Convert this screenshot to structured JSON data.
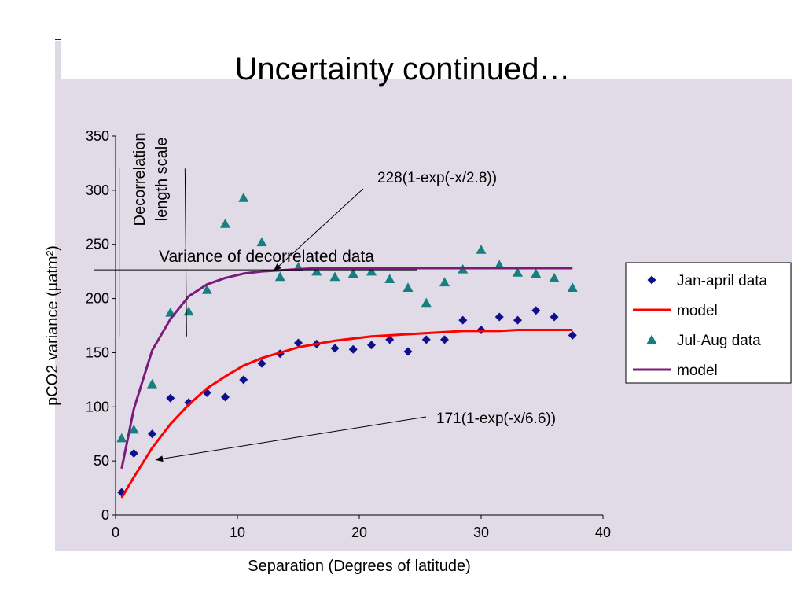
{
  "slide": {
    "title": "Uncertainty continued…"
  },
  "chart_data": {
    "type": "scatter",
    "xlabel": "Separation (Degrees of latitude)",
    "ylabel": "pCO2 variance (µatm²)",
    "xlim": [
      0,
      40
    ],
    "ylim": [
      0,
      350
    ],
    "x_ticks": [
      0,
      10,
      20,
      30,
      40
    ],
    "y_ticks": [
      0,
      50,
      100,
      150,
      200,
      250,
      300,
      350
    ],
    "grid": false,
    "legend_position": "right",
    "series": [
      {
        "name": "Jan-april data",
        "kind": "scatter",
        "marker": "diamond",
        "color": "#0f0f8c",
        "x": [
          0.5,
          1.5,
          3,
          4.5,
          6,
          7.5,
          9,
          10.5,
          12,
          13.5,
          15,
          16.5,
          18,
          19.5,
          21,
          22.5,
          24,
          25.5,
          27,
          28.5,
          30,
          31.5,
          33,
          34.5,
          36,
          37.5
        ],
        "y": [
          21,
          57,
          75,
          108,
          104,
          113,
          109,
          125,
          140,
          149,
          159,
          158,
          154,
          153,
          157,
          162,
          151,
          162,
          162,
          180,
          171,
          183,
          180,
          189,
          183,
          166
        ]
      },
      {
        "name": "model",
        "kind": "line",
        "color": "#ff0000",
        "amplitude": 171,
        "scale": 6.6,
        "x": [
          0.5,
          1.5,
          3,
          4.5,
          6,
          7.5,
          9,
          10.5,
          12,
          13.5,
          15,
          16.5,
          18,
          19.5,
          21,
          22.5,
          24,
          25.5,
          27,
          28.5,
          30,
          31.5,
          33,
          34.5,
          36,
          37.5
        ],
        "y": [
          16,
          35,
          62,
          84,
          102,
          117,
          128,
          138,
          145,
          150,
          155,
          158,
          161,
          163,
          165,
          166,
          167,
          168,
          169,
          170,
          170,
          170,
          171,
          171,
          171,
          171
        ]
      },
      {
        "name": "Jul-Aug data",
        "kind": "scatter",
        "marker": "triangle",
        "color": "#168080",
        "x": [
          0.5,
          1.5,
          3,
          4.5,
          6,
          7.5,
          9,
          10.5,
          12,
          13.5,
          15,
          16.5,
          18,
          19.5,
          21,
          22.5,
          24,
          25.5,
          27,
          28.5,
          30,
          31.5,
          33,
          34.5,
          36,
          37.5
        ],
        "y": [
          71,
          79,
          121,
          187,
          188,
          208,
          269,
          293,
          252,
          220,
          229,
          225,
          220,
          223,
          225,
          218,
          210,
          196,
          215,
          227,
          245,
          231,
          224,
          223,
          219,
          210
        ]
      },
      {
        "name": "model",
        "kind": "line",
        "color": "#7b1b7c",
        "amplitude": 228,
        "scale": 2.8,
        "x": [
          0.5,
          1.5,
          3,
          4.5,
          6,
          7.5,
          9,
          10.5,
          12,
          13.5,
          15,
          16.5,
          18,
          19.5,
          21,
          22.5,
          24,
          25.5,
          27,
          28.5,
          30,
          31.5,
          33,
          34.5,
          36,
          37.5
        ],
        "y": [
          43,
          98,
          152,
          181,
          202,
          213,
          219,
          223,
          225,
          226,
          227,
          228,
          228,
          228,
          228,
          228,
          228,
          228,
          228,
          228,
          228,
          228,
          228,
          228,
          228,
          228
        ]
      }
    ],
    "annotations": [
      {
        "id": "ann-summer",
        "text": "228(1-exp(-x/2.8))",
        "arrow_to": [
          13,
          225
        ]
      },
      {
        "id": "ann-winter",
        "text": "171(1-exp(-x/6.6))",
        "arrow_to": [
          3.5,
          54
        ]
      },
      {
        "id": "ann-variance",
        "text": "Variance of decorrelated data",
        "line_y": 225
      },
      {
        "id": "ann-decorr",
        "text_lines": [
          "Decorrelation",
          "length scale"
        ],
        "vlines_x": [
          0.3,
          5.7
        ],
        "vlines_yrange": [
          165,
          320
        ]
      }
    ]
  }
}
